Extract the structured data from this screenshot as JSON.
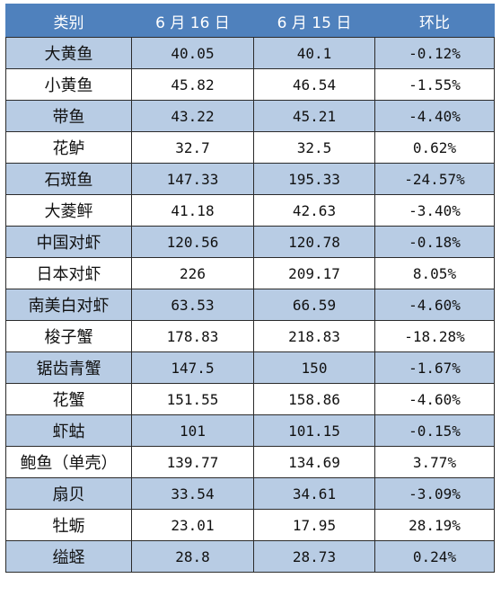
{
  "header": {
    "category": "类别",
    "date1": "6 月 16 日",
    "date2": "6 月 15 日",
    "change": "环比"
  },
  "rows": [
    {
      "name": "大黄鱼",
      "jun16": "40.05",
      "jun15": "40.1",
      "change": "-0.12%"
    },
    {
      "name": "小黄鱼",
      "jun16": "45.82",
      "jun15": "46.54",
      "change": "-1.55%"
    },
    {
      "name": "带鱼",
      "jun16": "43.22",
      "jun15": "45.21",
      "change": "-4.40%"
    },
    {
      "name": "花鲈",
      "jun16": "32.7",
      "jun15": "32.5",
      "change": "0.62%"
    },
    {
      "name": "石斑鱼",
      "jun16": "147.33",
      "jun15": "195.33",
      "change": "-24.57%"
    },
    {
      "name": "大菱鲆",
      "jun16": "41.18",
      "jun15": "42.63",
      "change": "-3.40%"
    },
    {
      "name": "中国对虾",
      "jun16": "120.56",
      "jun15": "120.78",
      "change": "-0.18%"
    },
    {
      "name": "日本对虾",
      "jun16": "226",
      "jun15": "209.17",
      "change": "8.05%"
    },
    {
      "name": "南美白对虾",
      "jun16": "63.53",
      "jun15": "66.59",
      "change": "-4.60%"
    },
    {
      "name": "梭子蟹",
      "jun16": "178.83",
      "jun15": "218.83",
      "change": "-18.28%"
    },
    {
      "name": "锯齿青蟹",
      "jun16": "147.5",
      "jun15": "150",
      "change": "-1.67%"
    },
    {
      "name": "花蟹",
      "jun16": "151.55",
      "jun15": "158.86",
      "change": "-4.60%"
    },
    {
      "name": "虾蛄",
      "jun16": "101",
      "jun15": "101.15",
      "change": "-0.15%"
    },
    {
      "name": "鲍鱼（单壳）",
      "jun16": "139.77",
      "jun15": "134.69",
      "change": "3.77%"
    },
    {
      "name": "扇贝",
      "jun16": "33.54",
      "jun15": "34.61",
      "change": "-3.09%"
    },
    {
      "name": "牡蛎",
      "jun16": "23.01",
      "jun15": "17.95",
      "change": "28.19%"
    },
    {
      "name": "缢蛏",
      "jun16": "28.8",
      "jun15": "28.73",
      "change": "0.24%"
    }
  ],
  "colors": {
    "header_bg": "#4f81bd",
    "band_bg": "#b8cce4",
    "header_text": "#ffffff"
  }
}
